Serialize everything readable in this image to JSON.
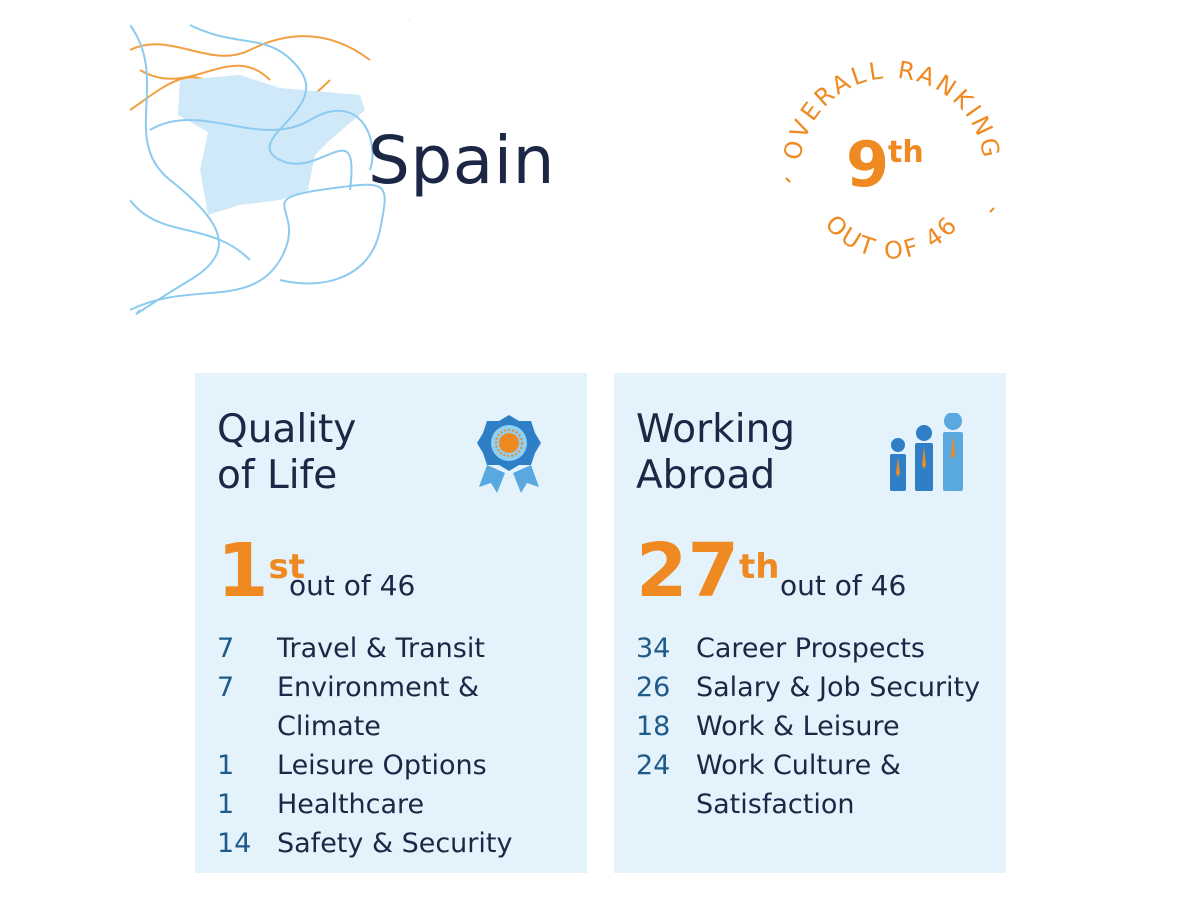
{
  "country": "Spain",
  "overall": {
    "caption_top": "OVERALL RANKING",
    "caption_bottom": "OUT OF 46",
    "rank_number": "9",
    "rank_suffix": "th"
  },
  "cards": [
    {
      "title_line1": "Quality",
      "title_line2": "of Life",
      "icon": "award-ribbon-icon",
      "rank_number": "1",
      "rank_suffix": "st",
      "out_of": "out of 46",
      "metrics": [
        {
          "rank": "7",
          "label": "Travel & Transit"
        },
        {
          "rank": "7",
          "label": "Environment & Climate"
        },
        {
          "rank": "1",
          "label": "Leisure Options"
        },
        {
          "rank": "1",
          "label": "Healthcare"
        },
        {
          "rank": "14",
          "label": "Safety & Security"
        }
      ]
    },
    {
      "title_line1": "Working",
      "title_line2": "Abroad",
      "icon": "people-growth-icon",
      "rank_number": "27",
      "rank_suffix": "th",
      "out_of": "out of 46",
      "metrics": [
        {
          "rank": "34",
          "label": "Career Prospects"
        },
        {
          "rank": "26",
          "label": "Salary & Job Security"
        },
        {
          "rank": "18",
          "label": "Work & Leisure"
        },
        {
          "rank": "24",
          "label": "Work Culture & Satisfaction"
        }
      ]
    }
  ],
  "colors": {
    "orange": "#ef8a22",
    "navy": "#1b2744",
    "card_bg": "#e3f2fb",
    "map_fill": "#cfe9f8",
    "line_blue": "#8ccbef",
    "metric_blue": "#1e5a8a"
  }
}
